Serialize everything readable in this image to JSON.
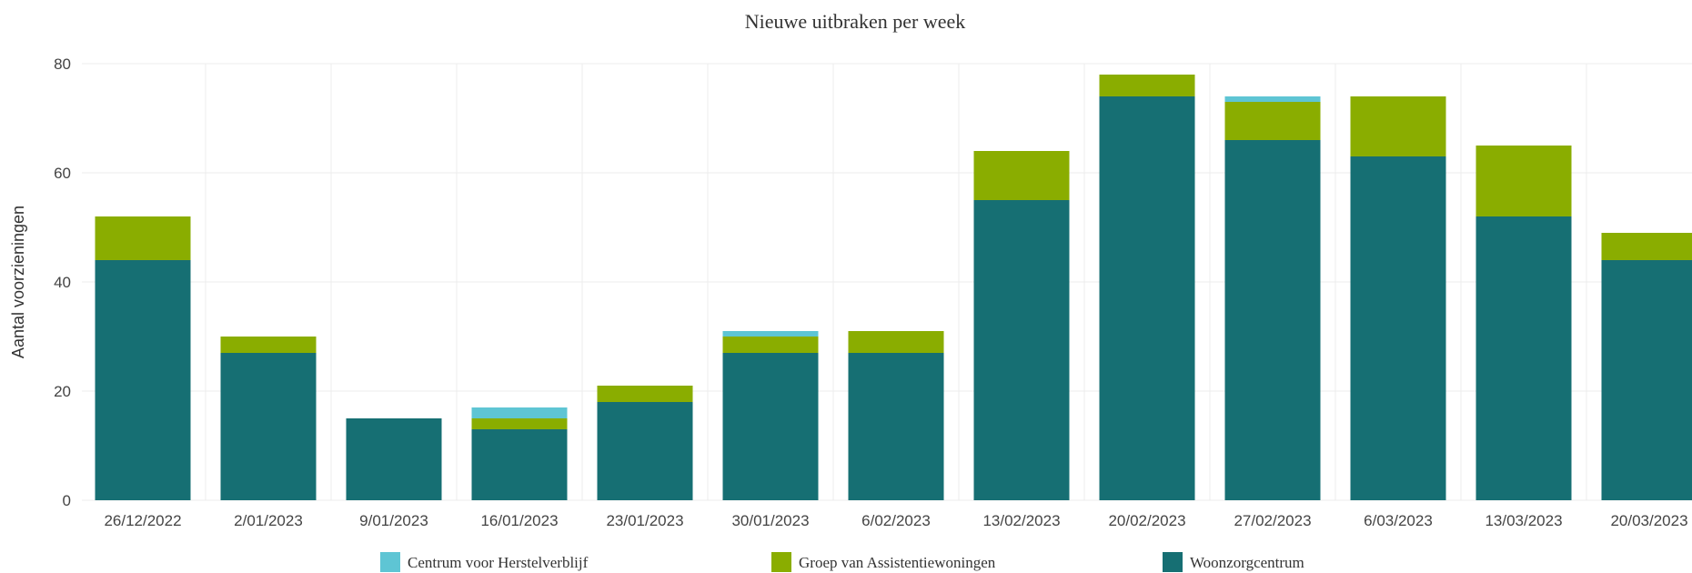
{
  "chart_data": {
    "type": "bar",
    "stacked": true,
    "title": "Nieuwe uitbraken per week",
    "xlabel": "",
    "ylabel": "Aantal voorzieningen",
    "ylim": [
      0,
      80
    ],
    "yticks": [
      0,
      20,
      40,
      60,
      80
    ],
    "grid": true,
    "legend_position": "bottom",
    "categories": [
      "26/12/2022",
      "2/01/2023",
      "9/01/2023",
      "16/01/2023",
      "23/01/2023",
      "30/01/2023",
      "6/02/2023",
      "13/02/2023",
      "20/02/2023",
      "27/02/2023",
      "6/03/2023",
      "13/03/2023",
      "20/03/2023"
    ],
    "series": [
      {
        "name": "Woonzorgcentrum",
        "color": "#166f73",
        "values": [
          44,
          27,
          15,
          13,
          18,
          27,
          27,
          55,
          74,
          66,
          63,
          52,
          44
        ]
      },
      {
        "name": "Groep van Assistentiewoningen",
        "color": "#8aad00",
        "values": [
          8,
          3,
          0,
          2,
          3,
          3,
          4,
          9,
          4,
          7,
          11,
          13,
          5
        ]
      },
      {
        "name": "Centrum voor Herstelverblijf",
        "color": "#5ec5d4",
        "values": [
          0,
          0,
          0,
          2,
          0,
          1,
          0,
          0,
          0,
          1,
          0,
          0,
          0
        ]
      }
    ],
    "legend_order": [
      "Centrum voor Herstelverblijf",
      "Groep van Assistentiewoningen",
      "Woonzorgcentrum"
    ]
  }
}
